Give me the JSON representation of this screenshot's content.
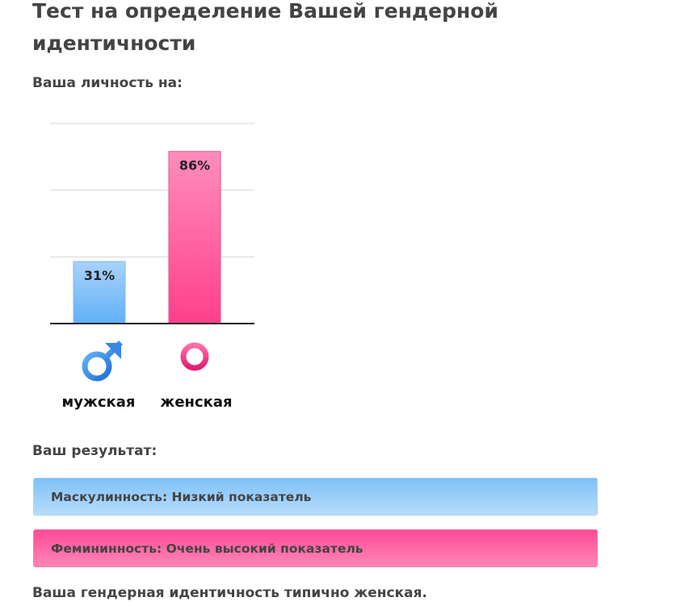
{
  "page": {
    "title": "Тест на определение Вашей гендерной идентичности",
    "subtitle": "Ваша личность на:"
  },
  "chart_data": {
    "type": "bar",
    "categories": [
      "мужская",
      "женская"
    ],
    "values": [
      31,
      86
    ],
    "value_labels": [
      "31%",
      "86%"
    ],
    "ylim": [
      0,
      100
    ],
    "grid": true,
    "bar_colors": [
      "#6bb6f7",
      "#ff4e95"
    ],
    "icons": [
      "male-symbol-icon",
      "female-symbol-icon"
    ]
  },
  "results": {
    "heading": "Ваш результат:",
    "masculinity": "Маскулинность: Низкий показатель",
    "femininity": "Фемининность: Очень высокий показатель",
    "conclusion": "Ваша гендерная идентичность типично женская."
  },
  "colors": {
    "male": "#6bb6f7",
    "female": "#ff4e95",
    "text": "#444444"
  }
}
